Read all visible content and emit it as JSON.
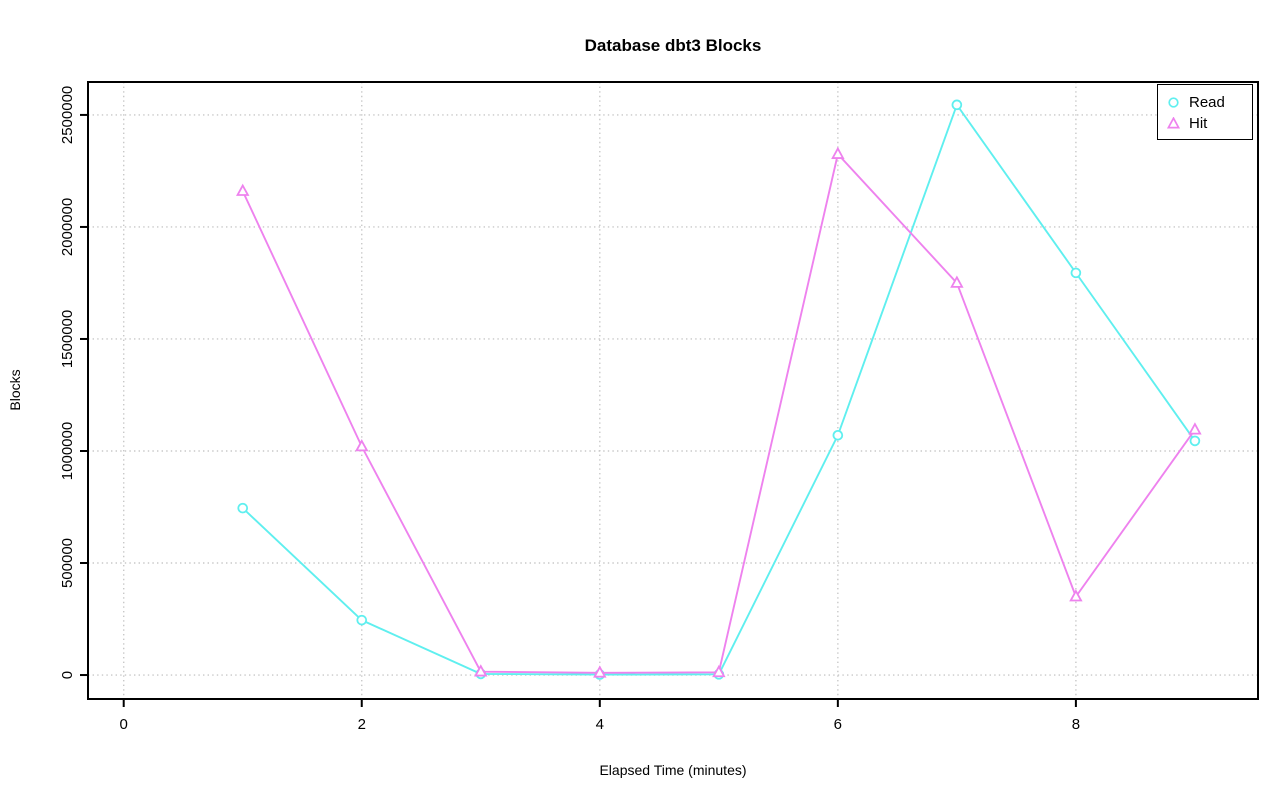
{
  "chart_data": {
    "type": "line",
    "title": "Database dbt3 Blocks",
    "xlabel": "Elapsed Time (minutes)",
    "ylabel": "Blocks",
    "x": [
      1,
      2,
      3,
      4,
      5,
      6,
      7,
      8,
      9
    ],
    "series": [
      {
        "name": "Read",
        "marker": "circle",
        "color": "#5FEFEF",
        "values": [
          745000,
          245000,
          5000,
          2000,
          3000,
          1070000,
          2545000,
          1795000,
          1045000
        ]
      },
      {
        "name": "Hit",
        "marker": "triangle",
        "color": "#EE82EE",
        "values": [
          2160000,
          1020000,
          15000,
          10000,
          12000,
          2325000,
          1750000,
          350000,
          1095000
        ]
      }
    ],
    "x_ticks": [
      0,
      2,
      4,
      6,
      8
    ],
    "y_ticks": [
      0,
      500000,
      1000000,
      1500000,
      2000000,
      2500000
    ],
    "xlim": [
      -0.3,
      9.53
    ],
    "ylim": [
      -107000,
      2647000
    ],
    "grid": true,
    "grid_color": "#C8C8C8",
    "axis_color": "#000000",
    "legend_position": "top-right"
  }
}
